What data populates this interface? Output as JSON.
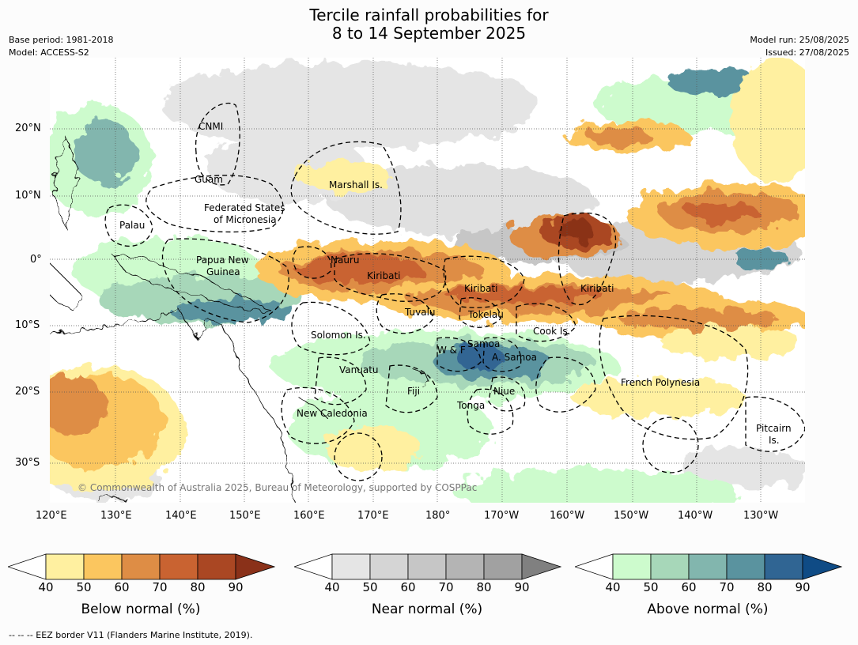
{
  "title": {
    "line1": "Tercile rainfall probabilities for",
    "line2": "8 to 14 September 2025"
  },
  "meta": {
    "base_period": "Base period: 1981-2018",
    "model": "Model: ACCESS-S2",
    "model_run": "Model run: 25/08/2025",
    "issued": "Issued: 27/08/2025"
  },
  "map": {
    "lat_labels": [
      "20°N",
      "10°N",
      "0°",
      "10°S",
      "20°S",
      "30°S"
    ],
    "lon_labels": [
      "120°E",
      "130°E",
      "140°E",
      "150°E",
      "160°E",
      "170°E",
      "180°",
      "170°W",
      "160°W",
      "150°W",
      "140°W",
      "130°W"
    ],
    "regions": {
      "cnmi": "CNMI",
      "guam": "Guam",
      "marshall": "Marshall Is.",
      "fsm1": "Federated States",
      "fsm2": "of Micronesia",
      "palau": "Palau",
      "png1": "Papua New",
      "png2": "Guinea",
      "nauru": "Nauru",
      "kiribati_w": "Kiribati",
      "kiribati_c": "Kiribati",
      "kiribati_e": "Kiribati",
      "tuvalu": "Tuvalu",
      "tokelau": "Tokelau",
      "cook": "Cook Is.",
      "solomon": "Solomon Is.",
      "wf": "W & F",
      "samoa": "Samoa",
      "asamoa": "A. Samoa",
      "vanuatu": "Vanuatu",
      "fiji": "Fiji",
      "niue": "Niue",
      "tonga": "Tonga",
      "newcal": "New Caledonia",
      "fp": "French Polynesia",
      "pitcairn1": "Pitcairn",
      "pitcairn2": "Is."
    },
    "copyright": "© Commonwealth of Australia 2025, Bureau of Meteorology, supported by COSPPac"
  },
  "colorbars": [
    {
      "title": "Below normal (%)",
      "ticks": [
        "40",
        "50",
        "60",
        "70",
        "80",
        "90"
      ],
      "colors": [
        "#fff0a0",
        "#fbc65f",
        "#de8d45",
        "#c96331",
        "#aa4723",
        "#8a3119"
      ],
      "under": "#ffffff"
    },
    {
      "title": "Near normal (%)",
      "ticks": [
        "40",
        "50",
        "60",
        "70",
        "80",
        "90"
      ],
      "colors": [
        "#e5e5e5",
        "#d5d5d5",
        "#c6c6c6",
        "#b4b4b4",
        "#a1a1a1",
        "#808080"
      ],
      "under": "#ffffff"
    },
    {
      "title": "Above normal (%)",
      "ticks": [
        "40",
        "50",
        "60",
        "70",
        "80",
        "90"
      ],
      "colors": [
        "#cdfbcd",
        "#a7d7b9",
        "#82b6ae",
        "#5a939f",
        "#306593",
        "#0f4b85"
      ],
      "under": "#ffffff"
    }
  ],
  "footnote": "-- -- -- EEZ border V11 (Flanders Marine Institute, 2019)."
}
